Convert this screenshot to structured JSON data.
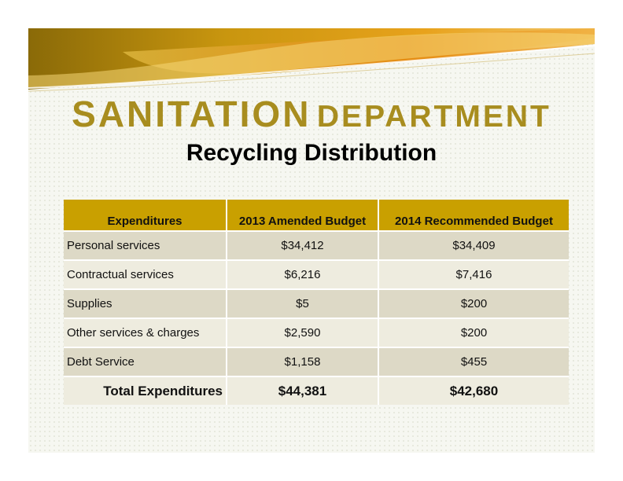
{
  "title": {
    "first_word": "SANITATION",
    "second_word": "DEPARTMENT"
  },
  "subtitle": "Recycling Distribution",
  "colors": {
    "title": "#a88d1f",
    "header_fill": "#c9a000",
    "row_dark": "#ddd9c6",
    "row_light": "#eeecdf"
  },
  "table": {
    "headers": [
      "Expenditures",
      "2013 Amended Budget",
      "2014 Recommended Budget"
    ],
    "rows": [
      {
        "label": "Personal services",
        "y2013": "$34,412",
        "y2014": "$34,409"
      },
      {
        "label": "Contractual services",
        "y2013": "$6,216",
        "y2014": "$7,416"
      },
      {
        "label": "Supplies",
        "y2013": "$5",
        "y2014": "$200"
      },
      {
        "label": "Other services & charges",
        "y2013": "$2,590",
        "y2014": "$200"
      },
      {
        "label": "Debt Service",
        "y2013": "$1,158",
        "y2014": "$455"
      }
    ],
    "total": {
      "label": "Total Expenditures",
      "y2013": "$44,381",
      "y2014": "$42,680"
    }
  }
}
